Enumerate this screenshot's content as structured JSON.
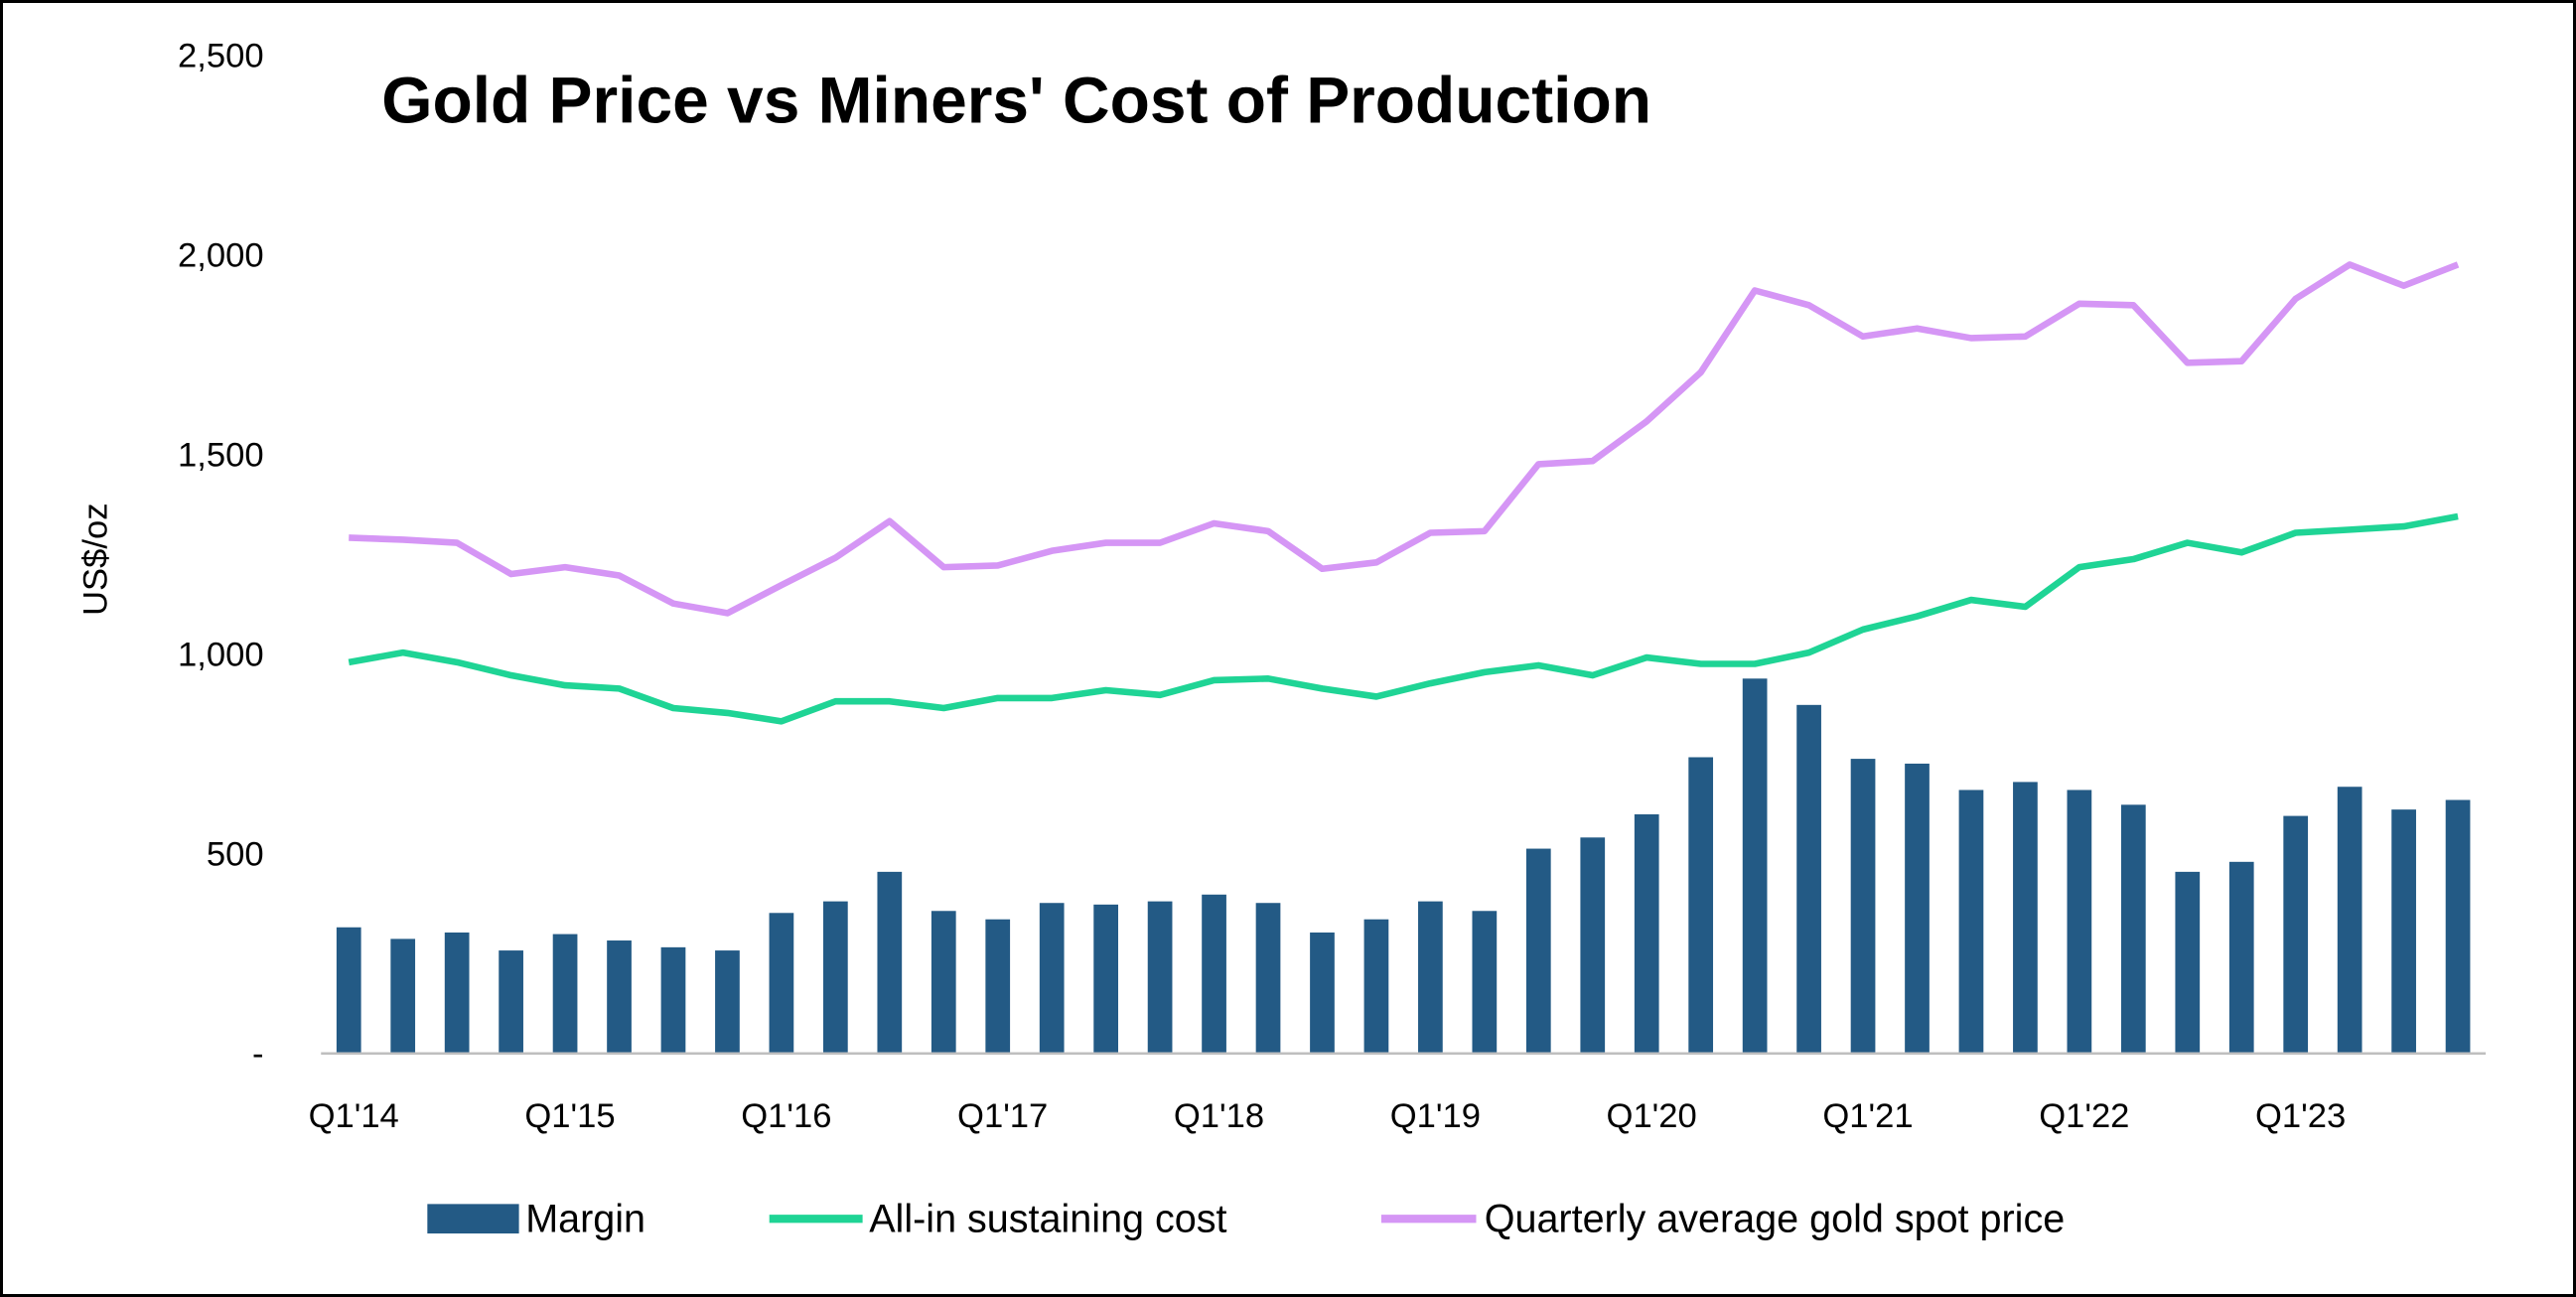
{
  "chart_data": {
    "type": "bar+line",
    "title": "Gold Price vs Miners' Cost of Production",
    "ylabel": "US$/oz",
    "xlabel": "",
    "ylim": [
      0,
      2500
    ],
    "yticks": [
      "-",
      "500",
      "1,000",
      "1,500",
      "2,000",
      "2,500"
    ],
    "ytick_values": [
      0,
      500,
      1000,
      1500,
      2000,
      2500
    ],
    "grid": false,
    "legend_position": "bottom",
    "categories": [
      "Q1'14",
      "Q2'14",
      "Q3'14",
      "Q4'14",
      "Q1'15",
      "Q2'15",
      "Q3'15",
      "Q4'15",
      "Q1'16",
      "Q2'16",
      "Q3'16",
      "Q4'16",
      "Q1'17",
      "Q2'17",
      "Q3'17",
      "Q4'17",
      "Q1'18",
      "Q2'18",
      "Q3'18",
      "Q4'18",
      "Q1'19",
      "Q2'19",
      "Q3'19",
      "Q4'19",
      "Q1'20",
      "Q2'20",
      "Q3'20",
      "Q4'20",
      "Q1'21",
      "Q2'21",
      "Q3'21",
      "Q4'21",
      "Q1'22",
      "Q2'22",
      "Q3'22",
      "Q4'22",
      "Q1'23",
      "Q2'23",
      "Q3'23",
      "Q4'23"
    ],
    "xtick_labels": [
      "Q1'14",
      "Q1'15",
      "Q1'16",
      "Q1'17",
      "Q1'18",
      "Q1'19",
      "Q1'20",
      "Q1'21",
      "Q1'22",
      "Q1'23"
    ],
    "series": [
      {
        "name": "Margin",
        "type": "bar",
        "color": "#235a85",
        "values": [
          316,
          287,
          303,
          258,
          299,
          283,
          266,
          258,
          352,
          381,
          455,
          357,
          336,
          377,
          373,
          381,
          398,
          377,
          303,
          336,
          381,
          357,
          513,
          541,
          599,
          742,
          939,
          873,
          738,
          726,
          660,
          680,
          660,
          623,
          455,
          480,
          595,
          668,
          611,
          635
        ]
      },
      {
        "name": "All-in sustaining cost",
        "type": "line",
        "color": "#1fd495",
        "values": [
          980,
          1004,
          980,
          947,
          922,
          914,
          865,
          853,
          832,
          882,
          882,
          865,
          890,
          890,
          910,
          898,
          935,
          939,
          914,
          894,
          927,
          955,
          972,
          947,
          992,
          976,
          976,
          1004,
          1062,
          1095,
          1136,
          1119,
          1218,
          1238,
          1279,
          1255,
          1304,
          1312,
          1320,
          1345
        ]
      },
      {
        "name": "Quarterly average gold spot price",
        "type": "line",
        "color": "#d596f5",
        "values": [
          1292,
          1287,
          1279,
          1201,
          1218,
          1197,
          1127,
          1103,
          1173,
          1242,
          1333,
          1218,
          1222,
          1259,
          1279,
          1279,
          1328,
          1308,
          1214,
          1230,
          1304,
          1308,
          1476,
          1484,
          1583,
          1706,
          1911,
          1874,
          1796,
          1816,
          1792,
          1796,
          1878,
          1874,
          1730,
          1734,
          1890,
          1976,
          1923,
          1976
        ]
      }
    ]
  }
}
